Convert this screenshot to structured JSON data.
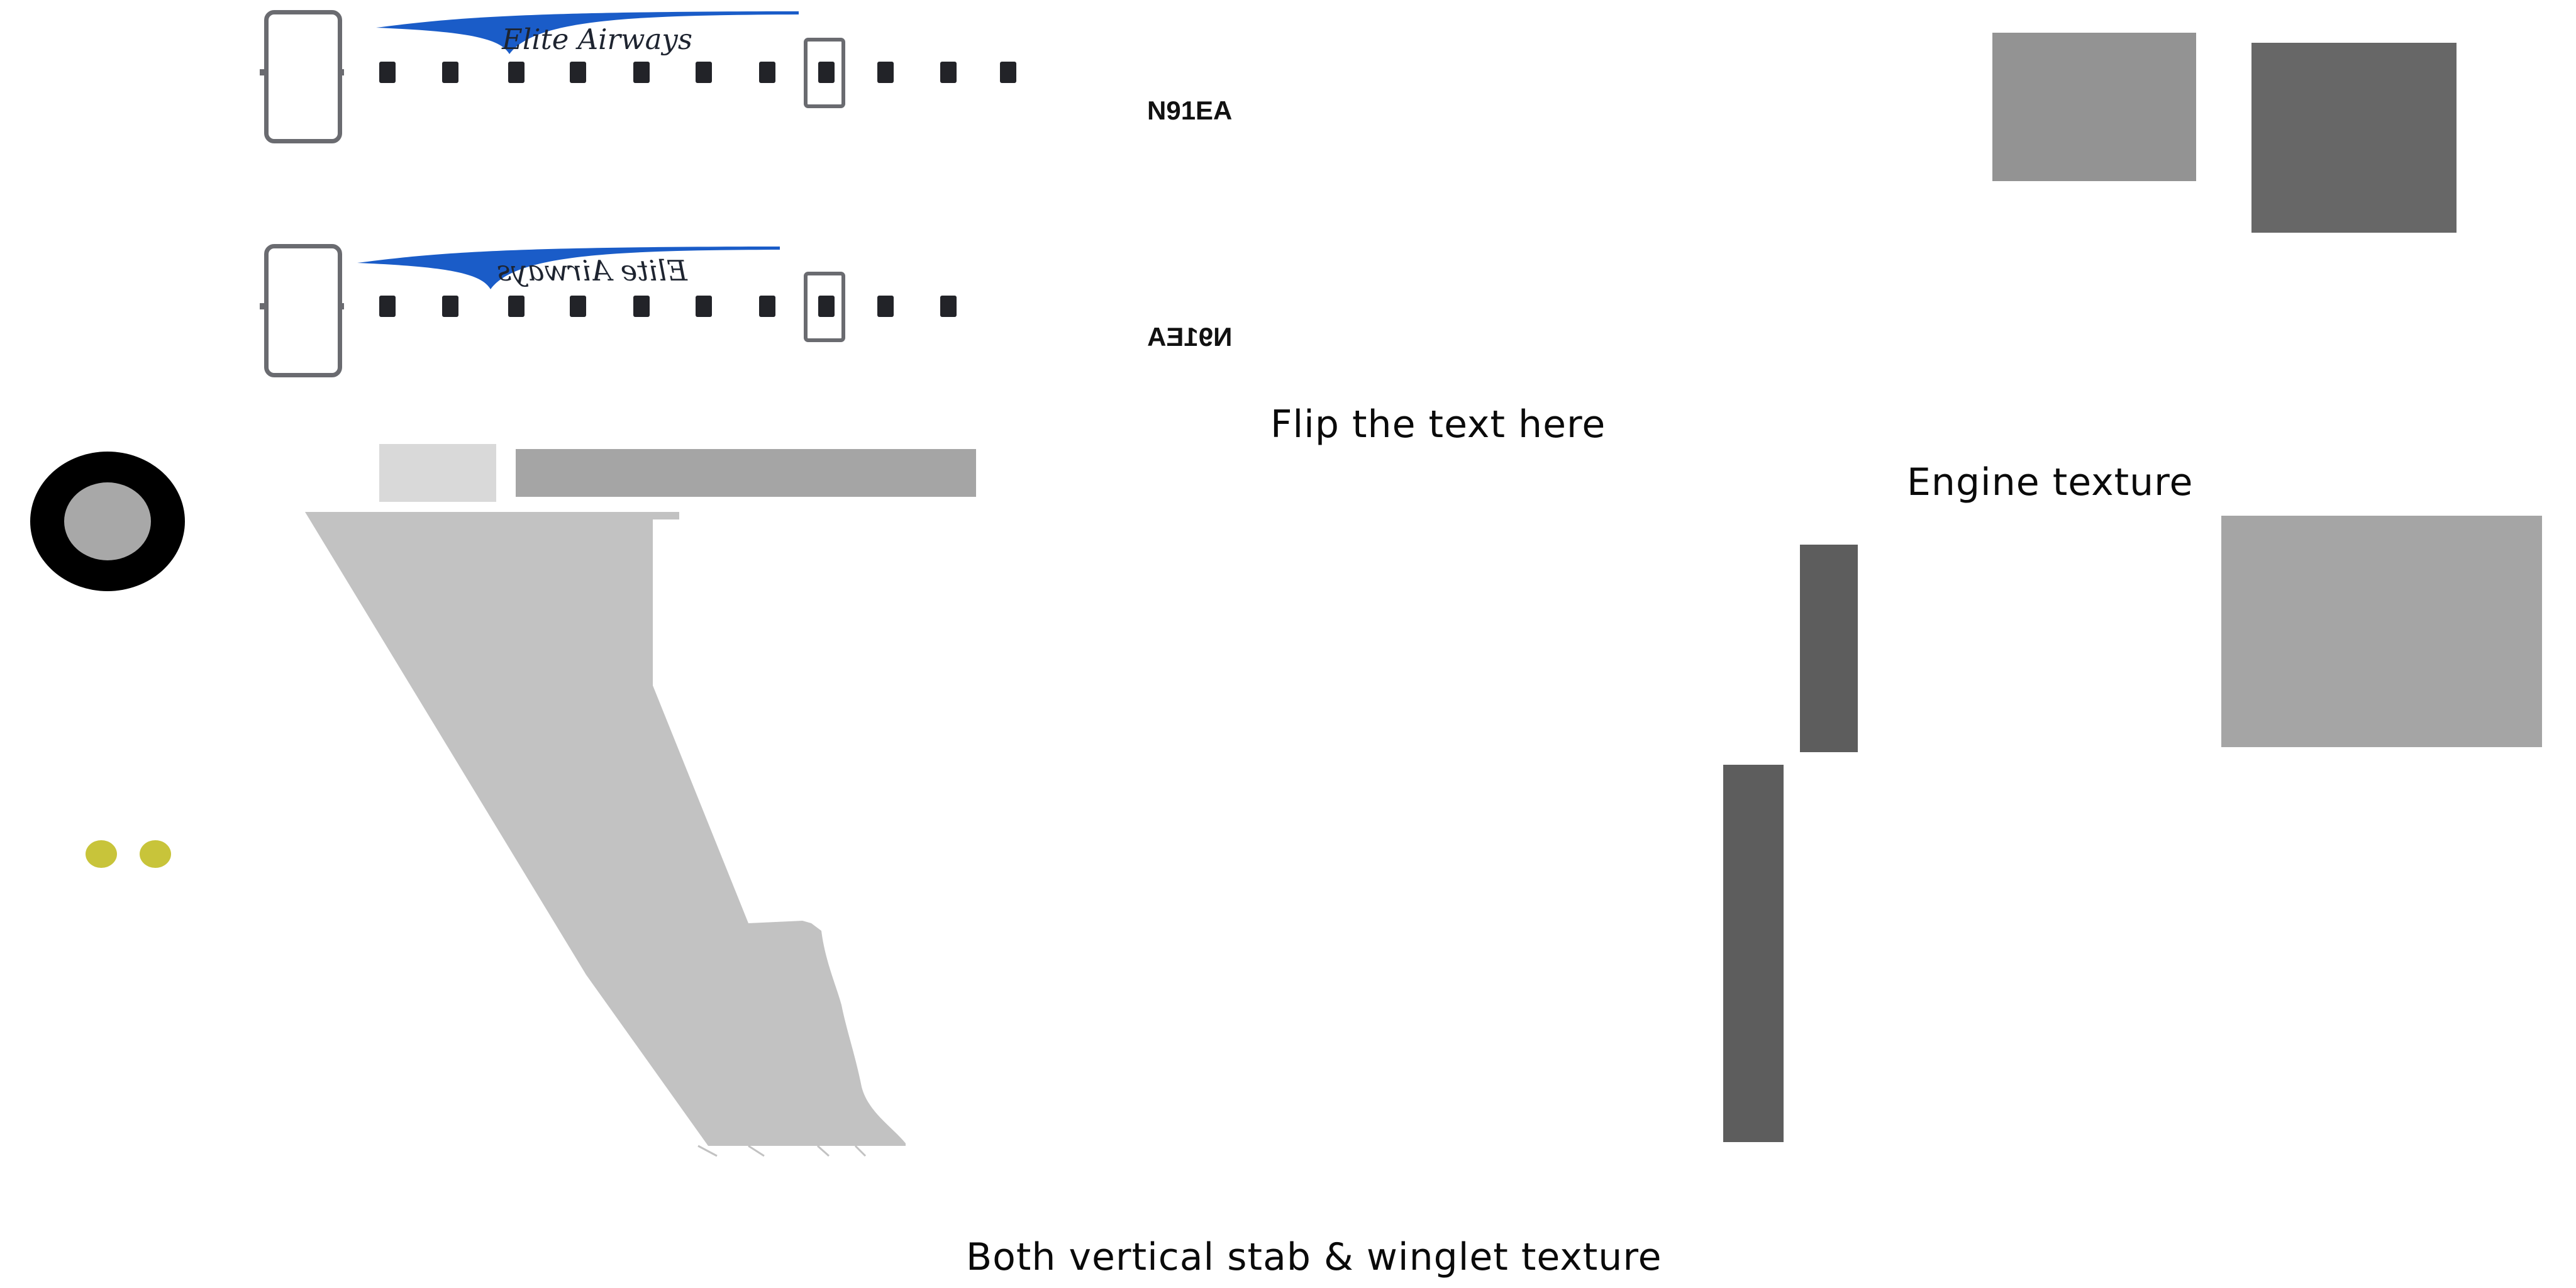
{
  "livery": {
    "airline_name": "Elite Airways",
    "registration": "N91EA",
    "swoosh_color": "#1a5cc8"
  },
  "notes": {
    "flip_text": "Flip the text here",
    "engine_texture": "Engine texture",
    "stab_winglet_texture": "Both vertical stab & winglet texture"
  },
  "colors": {
    "note_dot_green": "#00e000",
    "window_dark": "#222328",
    "door_gray": "#6a6b70",
    "panel_light": "#d9d9d9",
    "panel_mid": "#a5a5a5",
    "panel_gray": "#939393",
    "panel_dark": "#676767",
    "stab_dark": "#5d5d5d",
    "wing_gray": "#c2c2c2",
    "wheel_black": "#000000",
    "hub_gray": "#a8a8a8",
    "light_yellow": "#c8c43a"
  }
}
